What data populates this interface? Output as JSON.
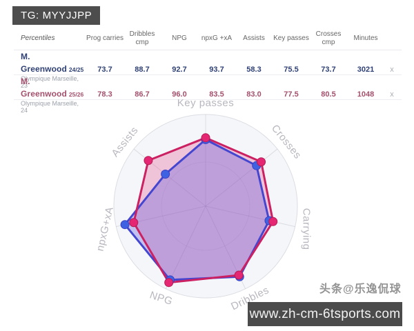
{
  "banner": {
    "text": "TG: MYYJJPP"
  },
  "table": {
    "headers": [
      "Percentiles",
      "Prog carries",
      "Dribbles cmp",
      "NPG",
      "npxG +xA",
      "Assists",
      "Key passes",
      "Crosses cmp",
      "Minutes"
    ],
    "rows": [
      {
        "name": "M. Greenwood",
        "season": "24/25",
        "subtitle": "Olympique Marseille, 23",
        "values": [
          "73.7",
          "88.7",
          "92.7",
          "93.7",
          "58.3",
          "75.5",
          "73.7",
          "3021"
        ],
        "remove_label": "x",
        "color": "#2f4075"
      },
      {
        "name": "M. Greenwood",
        "season": "25/26",
        "subtitle": "Olympique Marseille, 24",
        "values": [
          "78.3",
          "86.7",
          "96.0",
          "83.5",
          "83.0",
          "77.5",
          "80.5",
          "1048"
        ],
        "remove_label": "x",
        "color": "#a4506d"
      }
    ]
  },
  "chart_data": {
    "type": "radar",
    "categories": [
      "Key passes",
      "Crosses",
      "Carrying",
      "Dribbles",
      "NPG",
      "npxG+xA",
      "Assists"
    ],
    "series": [
      {
        "name": "M. Greenwood 24/25",
        "stroke": "#4446cf",
        "marker": "#3f62e2",
        "fill": "rgba(90,84,221,0.33)",
        "values": [
          75.5,
          73.7,
          73.7,
          88.7,
          92.7,
          93.7,
          58.3
        ]
      },
      {
        "name": "M. Greenwood 25/26",
        "stroke": "#cb2162",
        "marker": "#e52673",
        "fill": "rgba(227,47,117,0.25)",
        "values": [
          77.5,
          80.5,
          78.3,
          86.7,
          96.0,
          83.5,
          83.0
        ]
      }
    ],
    "rmax": 100,
    "grid": "circle-and-spokes",
    "axis_label_color": "#b7b7bf",
    "legend_position": "none"
  },
  "watermark": {
    "text": "头条@乐逸侃球"
  },
  "footer": {
    "url": "www.zh-cm-6tsports.com"
  }
}
